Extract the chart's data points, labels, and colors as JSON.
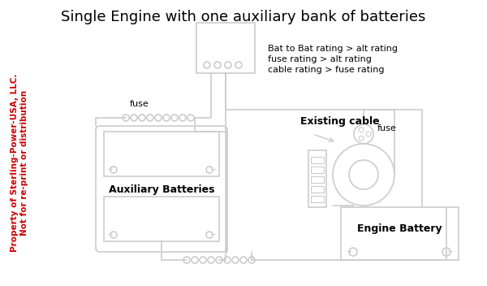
{
  "title": "Single Engine with one auxiliary bank of batteries",
  "title_fontsize": 16,
  "bg_color": "#ffffff",
  "line_color": "#cccccc",
  "text_color": "#000000",
  "red_text_color": "#cc0000",
  "watermark_line1": "Property of Sterling-Power-USA, LLC.",
  "watermark_line2": "Not for re-print or distribution",
  "note_lines": [
    "Bat to Bat rating > alt rating",
    "fuse rating > alt rating",
    "cable rating > fuse rating"
  ],
  "label_aux_batteries": "Auxiliary Batteries",
  "label_engine_battery": "Engine Battery",
  "label_fuse_left": "fuse",
  "label_fuse_right": "fuse",
  "label_existing_cable": "Existing cable"
}
